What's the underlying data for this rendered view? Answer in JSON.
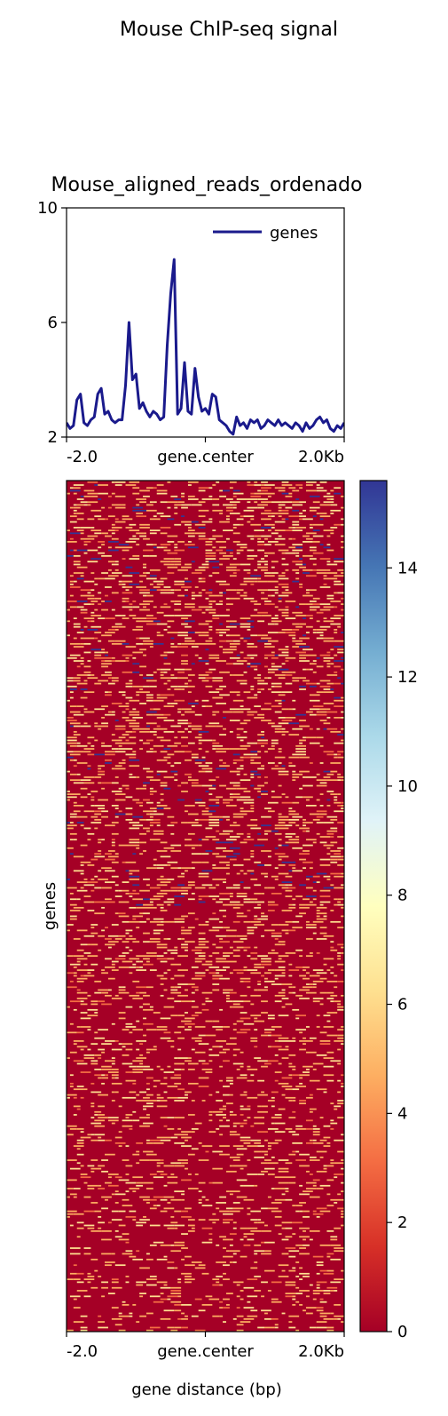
{
  "figure_title": "Mouse ChIP-seq signal",
  "chart_data": [
    {
      "type": "line",
      "title": "Mouse_aligned_reads_ordenado",
      "xlabel": "",
      "ylabel": "",
      "xlim": [
        -2000,
        2000
      ],
      "ylim": [
        2,
        10
      ],
      "y_ticks": [
        "2",
        "6",
        "10"
      ],
      "x_ticks": [
        "-2.0",
        "gene.center",
        "2.0Kb"
      ],
      "x_tick_values": [
        -2000,
        0,
        2000
      ],
      "legend_position": "upper-right",
      "series": [
        {
          "name": "genes",
          "color": "#1a1a8c",
          "x": [
            -2000,
            -1950,
            -1900,
            -1850,
            -1800,
            -1750,
            -1700,
            -1650,
            -1600,
            -1550,
            -1500,
            -1450,
            -1400,
            -1350,
            -1300,
            -1250,
            -1200,
            -1150,
            -1100,
            -1050,
            -1000,
            -950,
            -900,
            -850,
            -800,
            -750,
            -700,
            -650,
            -600,
            -550,
            -500,
            -450,
            -400,
            -350,
            -300,
            -250,
            -200,
            -150,
            -100,
            -50,
            0,
            50,
            100,
            150,
            200,
            250,
            300,
            350,
            400,
            450,
            500,
            550,
            600,
            650,
            700,
            750,
            800,
            850,
            900,
            950,
            1000,
            1050,
            1100,
            1150,
            1200,
            1250,
            1300,
            1350,
            1400,
            1450,
            1500,
            1550,
            1600,
            1650,
            1700,
            1750,
            1800,
            1850,
            1900,
            1950,
            2000
          ],
          "values": [
            2.5,
            2.3,
            2.4,
            3.3,
            3.5,
            2.5,
            2.4,
            2.6,
            2.7,
            3.5,
            3.7,
            2.8,
            2.9,
            2.6,
            2.5,
            2.6,
            2.6,
            3.8,
            6.0,
            4.0,
            4.2,
            3.0,
            3.2,
            2.9,
            2.7,
            2.9,
            2.8,
            2.6,
            2.7,
            5.2,
            7.0,
            8.2,
            2.8,
            3.0,
            4.6,
            2.9,
            2.8,
            4.4,
            3.4,
            2.9,
            3.0,
            2.8,
            3.5,
            3.4,
            2.6,
            2.5,
            2.4,
            2.2,
            2.1,
            2.7,
            2.4,
            2.5,
            2.3,
            2.6,
            2.5,
            2.6,
            2.3,
            2.4,
            2.6,
            2.5,
            2.4,
            2.6,
            2.4,
            2.5,
            2.4,
            2.3,
            2.5,
            2.4,
            2.2,
            2.5,
            2.3,
            2.4,
            2.6,
            2.7,
            2.5,
            2.6,
            2.3,
            2.2,
            2.4,
            2.3,
            2.5
          ]
        }
      ]
    },
    {
      "type": "heatmap",
      "xlabel": "gene distance (bp)",
      "ylabel": "genes",
      "x_ticks": [
        "-2.0",
        "gene.center",
        "2.0Kb"
      ],
      "x_tick_values": [
        -2000,
        0,
        2000
      ],
      "colorbar": {
        "min": 0,
        "max": 15.6,
        "ticks": [
          0,
          2,
          4,
          6,
          8,
          10,
          12,
          14
        ],
        "colormap": "RdYlBu",
        "colors": [
          "#a50026",
          "#d73027",
          "#f46d43",
          "#fdae61",
          "#fee090",
          "#ffffbf",
          "#e0f3f8",
          "#abd9e9",
          "#74add1",
          "#4575b4",
          "#313695"
        ]
      },
      "row_count": 300,
      "column_count": 80,
      "background_value": 0,
      "dominant_color": "#a50026",
      "sparse_highlight_colors": [
        "#fdae61",
        "#fee090",
        "#313695",
        "#f46d43"
      ]
    }
  ]
}
